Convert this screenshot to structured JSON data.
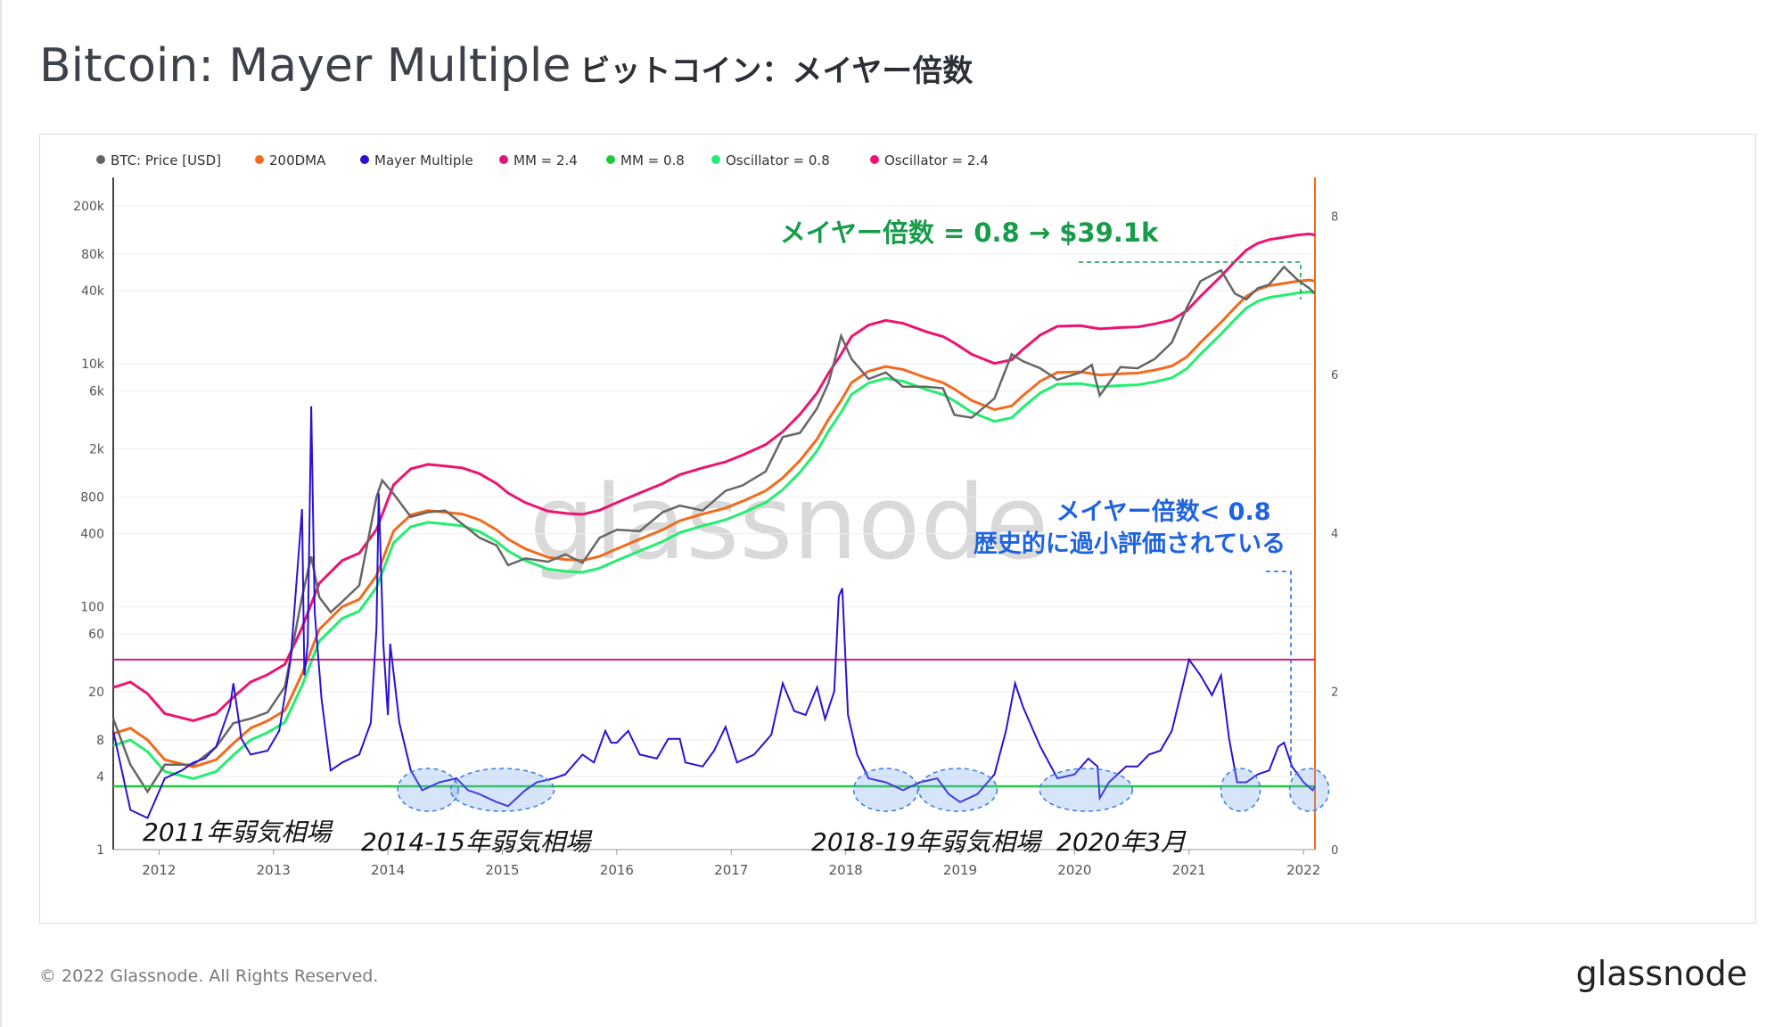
{
  "title": "Bitcoin: Mayer Multiple",
  "title_jp": "ビットコイン：メイヤー倍数",
  "footer": "© 2022 Glassnode. All Rights Reserved.",
  "brand": "glassnode",
  "watermark": "glassnode",
  "colors": {
    "price": "#666666",
    "dma": "#f26b1d",
    "mm": "#2a12d4",
    "mm24": "#e0157a",
    "mm08": "#1ec93a",
    "osc08": "#22ee70",
    "osc24": "#ec1470",
    "right_axis": "#f26b1d"
  },
  "chart_data": {
    "type": "line",
    "legend": [
      {
        "label": "BTC: Price [USD]",
        "color": "#666666"
      },
      {
        "label": "200DMA",
        "color": "#f26b1d"
      },
      {
        "label": "Mayer Multiple",
        "color": "#2a12d4"
      },
      {
        "label": "MM = 2.4",
        "color": "#e0157a"
      },
      {
        "label": "MM = 0.8",
        "color": "#1ec93a"
      },
      {
        "label": "Oscillator = 0.8",
        "color": "#22ee70"
      },
      {
        "label": "Oscillator = 2.4",
        "color": "#ec1470"
      }
    ],
    "x_ticks": [
      "2012",
      "2013",
      "2014",
      "2015",
      "2016",
      "2017",
      "2018",
      "2019",
      "2020",
      "2021",
      "2022"
    ],
    "x_range": [
      2011.6,
      2022.1
    ],
    "left_axis": {
      "scale": "log",
      "range": [
        1,
        300000
      ],
      "ticks": [
        {
          "v": 200000,
          "t": "200k"
        },
        {
          "v": 80000,
          "t": "80k"
        },
        {
          "v": 40000,
          "t": "40k"
        },
        {
          "v": 10000,
          "t": "10k"
        },
        {
          "v": 6000,
          "t": "6k"
        },
        {
          "v": 2000,
          "t": "2k"
        },
        {
          "v": 800,
          "t": "800"
        },
        {
          "v": 400,
          "t": "400"
        },
        {
          "v": 100,
          "t": "100"
        },
        {
          "v": 60,
          "t": "60"
        },
        {
          "v": 20,
          "t": "20"
        },
        {
          "v": 8,
          "t": "8"
        },
        {
          "v": 4,
          "t": "4"
        },
        {
          "v": 1,
          "t": "1"
        }
      ]
    },
    "right_axis": {
      "scale": "linear",
      "range": [
        0,
        8.4
      ],
      "ticks": [
        0,
        2,
        4,
        6,
        8
      ]
    },
    "price": [
      [
        2011.6,
        12
      ],
      [
        2011.75,
        5
      ],
      [
        2011.9,
        3
      ],
      [
        2012.05,
        5
      ],
      [
        2012.3,
        5
      ],
      [
        2012.5,
        7
      ],
      [
        2012.65,
        11
      ],
      [
        2012.8,
        12
      ],
      [
        2012.95,
        13.5
      ],
      [
        2013.1,
        22
      ],
      [
        2013.25,
        120
      ],
      [
        2013.33,
        260
      ],
      [
        2013.4,
        120
      ],
      [
        2013.5,
        90
      ],
      [
        2013.6,
        110
      ],
      [
        2013.75,
        150
      ],
      [
        2013.9,
        800
      ],
      [
        2013.95,
        1100
      ],
      [
        2014.05,
        850
      ],
      [
        2014.2,
        550
      ],
      [
        2014.35,
        600
      ],
      [
        2014.5,
        620
      ],
      [
        2014.65,
        480
      ],
      [
        2014.8,
        370
      ],
      [
        2014.95,
        320
      ],
      [
        2015.05,
        220
      ],
      [
        2015.2,
        250
      ],
      [
        2015.4,
        235
      ],
      [
        2015.55,
        270
      ],
      [
        2015.7,
        230
      ],
      [
        2015.85,
        370
      ],
      [
        2016.0,
        430
      ],
      [
        2016.2,
        420
      ],
      [
        2016.4,
        600
      ],
      [
        2016.55,
        680
      ],
      [
        2016.75,
        620
      ],
      [
        2016.95,
        900
      ],
      [
        2017.1,
        1000
      ],
      [
        2017.3,
        1300
      ],
      [
        2017.45,
        2500
      ],
      [
        2017.6,
        2700
      ],
      [
        2017.75,
        4300
      ],
      [
        2017.85,
        7000
      ],
      [
        2017.96,
        17000
      ],
      [
        2018.05,
        11000
      ],
      [
        2018.2,
        7500
      ],
      [
        2018.35,
        8500
      ],
      [
        2018.5,
        6500
      ],
      [
        2018.7,
        6500
      ],
      [
        2018.85,
        6300
      ],
      [
        2018.95,
        3800
      ],
      [
        2019.1,
        3600
      ],
      [
        2019.3,
        5200
      ],
      [
        2019.45,
        12000
      ],
      [
        2019.55,
        10500
      ],
      [
        2019.7,
        9200
      ],
      [
        2019.85,
        7400
      ],
      [
        2020.05,
        8500
      ],
      [
        2020.15,
        9800
      ],
      [
        2020.22,
        5500
      ],
      [
        2020.4,
        9400
      ],
      [
        2020.55,
        9200
      ],
      [
        2020.7,
        11000
      ],
      [
        2020.85,
        15000
      ],
      [
        2020.98,
        29000
      ],
      [
        2021.1,
        48000
      ],
      [
        2021.28,
        59000
      ],
      [
        2021.4,
        38000
      ],
      [
        2021.5,
        34000
      ],
      [
        2021.6,
        42000
      ],
      [
        2021.7,
        45000
      ],
      [
        2021.83,
        63000
      ],
      [
        2021.95,
        49000
      ],
      [
        2022.05,
        42000
      ],
      [
        2022.1,
        38000
      ]
    ],
    "dma200": [
      [
        2011.6,
        9
      ],
      [
        2011.75,
        10
      ],
      [
        2011.9,
        8
      ],
      [
        2012.05,
        5.5
      ],
      [
        2012.3,
        4.8
      ],
      [
        2012.5,
        5.5
      ],
      [
        2012.65,
        7.5
      ],
      [
        2012.8,
        10
      ],
      [
        2012.95,
        11.5
      ],
      [
        2013.1,
        14
      ],
      [
        2013.25,
        28
      ],
      [
        2013.4,
        65
      ],
      [
        2013.6,
        100
      ],
      [
        2013.75,
        115
      ],
      [
        2013.9,
        180
      ],
      [
        2014.05,
        420
      ],
      [
        2014.2,
        570
      ],
      [
        2014.35,
        620
      ],
      [
        2014.5,
        600
      ],
      [
        2014.65,
        580
      ],
      [
        2014.8,
        520
      ],
      [
        2014.95,
        430
      ],
      [
        2015.05,
        360
      ],
      [
        2015.2,
        300
      ],
      [
        2015.4,
        255
      ],
      [
        2015.55,
        245
      ],
      [
        2015.7,
        240
      ],
      [
        2015.85,
        260
      ],
      [
        2016.0,
        300
      ],
      [
        2016.2,
        360
      ],
      [
        2016.4,
        430
      ],
      [
        2016.55,
        510
      ],
      [
        2016.75,
        580
      ],
      [
        2016.95,
        650
      ],
      [
        2017.1,
        740
      ],
      [
        2017.3,
        900
      ],
      [
        2017.45,
        1150
      ],
      [
        2017.6,
        1600
      ],
      [
        2017.75,
        2400
      ],
      [
        2017.85,
        3500
      ],
      [
        2017.96,
        5000
      ],
      [
        2018.05,
        7000
      ],
      [
        2018.2,
        8700
      ],
      [
        2018.35,
        9500
      ],
      [
        2018.5,
        9000
      ],
      [
        2018.7,
        7700
      ],
      [
        2018.85,
        7000
      ],
      [
        2018.95,
        6200
      ],
      [
        2019.1,
        5000
      ],
      [
        2019.3,
        4200
      ],
      [
        2019.45,
        4500
      ],
      [
        2019.55,
        5500
      ],
      [
        2019.7,
        7200
      ],
      [
        2019.85,
        8500
      ],
      [
        2020.05,
        8600
      ],
      [
        2020.15,
        8300
      ],
      [
        2020.22,
        8100
      ],
      [
        2020.4,
        8300
      ],
      [
        2020.55,
        8400
      ],
      [
        2020.7,
        8900
      ],
      [
        2020.85,
        9600
      ],
      [
        2020.98,
        11400
      ],
      [
        2021.1,
        15000
      ],
      [
        2021.28,
        22000
      ],
      [
        2021.4,
        29000
      ],
      [
        2021.5,
        36000
      ],
      [
        2021.6,
        41000
      ],
      [
        2021.7,
        44000
      ],
      [
        2021.83,
        46000
      ],
      [
        2021.95,
        48000
      ],
      [
        2022.05,
        49000
      ],
      [
        2022.1,
        48000
      ]
    ],
    "mayer_multiple": [
      [
        2011.6,
        1.5
      ],
      [
        2011.75,
        0.5
      ],
      [
        2011.9,
        0.4
      ],
      [
        2012.05,
        0.9
      ],
      [
        2012.2,
        1.0
      ],
      [
        2012.3,
        1.1
      ],
      [
        2012.4,
        1.15
      ],
      [
        2012.5,
        1.3
      ],
      [
        2012.62,
        1.8
      ],
      [
        2012.65,
        2.1
      ],
      [
        2012.72,
        1.4
      ],
      [
        2012.8,
        1.2
      ],
      [
        2012.95,
        1.25
      ],
      [
        2013.05,
        1.5
      ],
      [
        2013.15,
        2.4
      ],
      [
        2013.25,
        4.3
      ],
      [
        2013.27,
        2.2
      ],
      [
        2013.3,
        2.6
      ],
      [
        2013.33,
        5.6
      ],
      [
        2013.36,
        3.0
      ],
      [
        2013.42,
        1.9
      ],
      [
        2013.5,
        1.0
      ],
      [
        2013.6,
        1.1
      ],
      [
        2013.75,
        1.2
      ],
      [
        2013.85,
        1.6
      ],
      [
        2013.9,
        2.8
      ],
      [
        2013.92,
        4.5
      ],
      [
        2013.96,
        2.6
      ],
      [
        2014.0,
        1.7
      ],
      [
        2014.02,
        2.6
      ],
      [
        2014.1,
        1.6
      ],
      [
        2014.2,
        1.0
      ],
      [
        2014.3,
        0.75
      ],
      [
        2014.45,
        0.85
      ],
      [
        2014.6,
        0.9
      ],
      [
        2014.7,
        0.75
      ],
      [
        2014.8,
        0.7
      ],
      [
        2014.95,
        0.6
      ],
      [
        2015.05,
        0.55
      ],
      [
        2015.2,
        0.75
      ],
      [
        2015.3,
        0.85
      ],
      [
        2015.45,
        0.9
      ],
      [
        2015.55,
        0.95
      ],
      [
        2015.7,
        1.2
      ],
      [
        2015.8,
        1.1
      ],
      [
        2015.9,
        1.5
      ],
      [
        2015.95,
        1.35
      ],
      [
        2016.0,
        1.35
      ],
      [
        2016.1,
        1.5
      ],
      [
        2016.2,
        1.2
      ],
      [
        2016.35,
        1.15
      ],
      [
        2016.45,
        1.4
      ],
      [
        2016.55,
        1.4
      ],
      [
        2016.6,
        1.1
      ],
      [
        2016.75,
        1.05
      ],
      [
        2016.85,
        1.25
      ],
      [
        2016.95,
        1.55
      ],
      [
        2017.05,
        1.1
      ],
      [
        2017.2,
        1.2
      ],
      [
        2017.35,
        1.45
      ],
      [
        2017.45,
        2.1
      ],
      [
        2017.55,
        1.75
      ],
      [
        2017.65,
        1.7
      ],
      [
        2017.75,
        2.05
      ],
      [
        2017.82,
        1.65
      ],
      [
        2017.9,
        2.0
      ],
      [
        2017.94,
        3.2
      ],
      [
        2017.97,
        3.3
      ],
      [
        2018.02,
        1.7
      ],
      [
        2018.1,
        1.2
      ],
      [
        2018.2,
        0.9
      ],
      [
        2018.35,
        0.85
      ],
      [
        2018.5,
        0.75
      ],
      [
        2018.65,
        0.85
      ],
      [
        2018.8,
        0.9
      ],
      [
        2018.9,
        0.7
      ],
      [
        2019.0,
        0.6
      ],
      [
        2019.15,
        0.7
      ],
      [
        2019.3,
        0.95
      ],
      [
        2019.4,
        1.5
      ],
      [
        2019.48,
        2.1
      ],
      [
        2019.55,
        1.8
      ],
      [
        2019.7,
        1.3
      ],
      [
        2019.85,
        0.9
      ],
      [
        2020.0,
        0.95
      ],
      [
        2020.12,
        1.15
      ],
      [
        2020.2,
        1.05
      ],
      [
        2020.22,
        0.65
      ],
      [
        2020.3,
        0.85
      ],
      [
        2020.45,
        1.05
      ],
      [
        2020.55,
        1.05
      ],
      [
        2020.65,
        1.2
      ],
      [
        2020.75,
        1.25
      ],
      [
        2020.85,
        1.5
      ],
      [
        2020.95,
        2.1
      ],
      [
        2021.0,
        2.4
      ],
      [
        2021.1,
        2.2
      ],
      [
        2021.2,
        1.95
      ],
      [
        2021.28,
        2.2
      ],
      [
        2021.35,
        1.4
      ],
      [
        2021.42,
        0.85
      ],
      [
        2021.5,
        0.85
      ],
      [
        2021.6,
        0.95
      ],
      [
        2021.7,
        1.0
      ],
      [
        2021.78,
        1.3
      ],
      [
        2021.83,
        1.35
      ],
      [
        2021.9,
        1.05
      ],
      [
        2022.0,
        0.85
      ],
      [
        2022.08,
        0.75
      ],
      [
        2022.1,
        0.8
      ]
    ],
    "mm_24_level": 2.4,
    "mm_08_level": 0.8,
    "annotations": {
      "top": "メイヤー倍数 = 0.8 → $39.1k",
      "mid_1": "メイヤー倍数< 0.8",
      "mid_2": "歴史的に過小評価されている",
      "bear_2011": "2011年弱気相場",
      "bear_2014": "2014-15年弱気相場",
      "bear_2018": "2018-19年弱気相場",
      "march_2020": "2020年3月"
    }
  }
}
